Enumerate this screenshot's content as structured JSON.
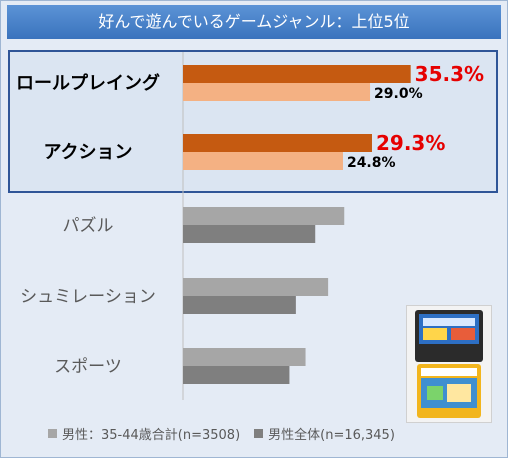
{
  "header": {
    "title": "好んで遊んでいるゲームジャンル：上位5位"
  },
  "chart_data": {
    "type": "bar",
    "orientation": "horizontal",
    "title": "好んで遊んでいるゲームジャンル：上位5位",
    "categories": [
      "ロールプレイング",
      "アクション",
      "パズル",
      "シュミレーション",
      "スポーツ"
    ],
    "series": [
      {
        "name": "男性：35-44歳合計(n=3508)",
        "values": [
          35.3,
          29.3,
          25.0,
          22.5,
          19.0
        ]
      },
      {
        "name": "男性全体(n=16,345)",
        "values": [
          29.0,
          24.8,
          20.5,
          17.5,
          16.5
        ]
      }
    ],
    "data_labels": {
      "series_0": [
        "35.3%",
        "29.3%",
        "",
        "",
        ""
      ],
      "series_1": [
        "29.0%",
        "24.8%",
        "",
        "",
        ""
      ]
    },
    "highlighted_categories": [
      "ロールプレイング",
      "アクション"
    ],
    "xlim": [
      0,
      45
    ],
    "legend_position": "bottom",
    "grid": false
  },
  "colors": {
    "highlight_series_0": "#c55a11",
    "highlight_series_1": "#f4b183",
    "series_0": "#a6a6a6",
    "series_1": "#7f7f7f",
    "label_series_0": "#e60000",
    "title_bg": "#4a86cf"
  },
  "photo": {
    "icon": "famicom-cartridges-photo"
  }
}
